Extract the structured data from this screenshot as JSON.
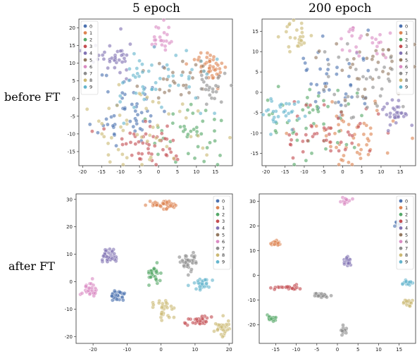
{
  "columns": [
    "5 epoch",
    "200 epoch"
  ],
  "rows": [
    "before FT",
    "after FT"
  ],
  "palette": [
    "#4c72b0",
    "#dd8452",
    "#55a868",
    "#c44e52",
    "#8172b3",
    "#937860",
    "#da8bc3",
    "#8c8c8c",
    "#ccb974",
    "#64b5cd"
  ],
  "chart_data": [
    {
      "type": "scatter",
      "panel": "5 epoch / before FT",
      "legend": [
        "0",
        "1",
        "2",
        "3",
        "4",
        "5",
        "6",
        "7",
        "8",
        "9"
      ],
      "legend_position": "top-left",
      "xlim": [
        -21,
        19.5
      ],
      "ylim": [
        -19,
        22.5
      ],
      "xticks": [
        -20,
        -15,
        -10,
        -5,
        0,
        5,
        10,
        15
      ],
      "yticks": [
        -15,
        -10,
        -5,
        0,
        5,
        10,
        15,
        20
      ],
      "clusters": [
        {
          "label": "0",
          "cx": -8,
          "cy": -3,
          "sx": 4,
          "sy": 6,
          "n": 50,
          "seed": 11
        },
        {
          "label": "1",
          "cx": 14,
          "cy": 9,
          "sx": 2.5,
          "sy": 2,
          "n": 45,
          "seed": 12
        },
        {
          "label": "2",
          "cx": 8,
          "cy": -10,
          "sx": 5,
          "sy": 4,
          "n": 40,
          "seed": 13
        },
        {
          "label": "3",
          "cx": 0,
          "cy": -13,
          "sx": 6,
          "sy": 3,
          "n": 45,
          "seed": 14
        },
        {
          "label": "4",
          "cx": -11,
          "cy": 12,
          "sx": 3,
          "sy": 3,
          "n": 35,
          "seed": 15
        },
        {
          "label": "5",
          "cx": 5,
          "cy": 5,
          "sx": 5,
          "sy": 3,
          "n": 25,
          "seed": 16
        },
        {
          "label": "6",
          "cx": 1,
          "cy": 17,
          "sx": 1.5,
          "sy": 2,
          "n": 22,
          "seed": 17
        },
        {
          "label": "7",
          "cx": 13,
          "cy": 2,
          "sx": 2.5,
          "sy": 3,
          "n": 25,
          "seed": 18
        },
        {
          "label": "8",
          "cx": -3,
          "cy": -8,
          "sx": 8,
          "sy": 6,
          "n": 50,
          "seed": 19
        },
        {
          "label": "9",
          "cx": 0,
          "cy": 5,
          "sx": 7,
          "sy": 5,
          "n": 50,
          "seed": 20
        }
      ]
    },
    {
      "type": "scatter",
      "panel": "200 epoch / before FT",
      "legend": [
        "0",
        "1",
        "2",
        "3",
        "4",
        "5",
        "6",
        "7",
        "8",
        "9"
      ],
      "legend_position": "top-right",
      "xlim": [
        -21,
        19
      ],
      "ylim": [
        -18,
        18
      ],
      "xticks": [
        -20,
        -15,
        -10,
        -5,
        0,
        5,
        10,
        15
      ],
      "yticks": [
        -15,
        -10,
        -5,
        0,
        5,
        10,
        15
      ],
      "clusters": [
        {
          "label": "0",
          "cx": -3,
          "cy": 3,
          "sx": 6,
          "sy": 5,
          "n": 40,
          "seed": 31
        },
        {
          "label": "1",
          "cx": 2,
          "cy": -10,
          "sx": 6,
          "sy": 4,
          "n": 50,
          "seed": 32
        },
        {
          "label": "2",
          "cx": -8,
          "cy": -8,
          "sx": 6,
          "sy": 5,
          "n": 45,
          "seed": 33
        },
        {
          "label": "3",
          "cx": -5,
          "cy": -10,
          "sx": 7,
          "sy": 4,
          "n": 45,
          "seed": 34
        },
        {
          "label": "4",
          "cx": 14,
          "cy": -5,
          "sx": 2,
          "sy": 2,
          "n": 30,
          "seed": 35
        },
        {
          "label": "5",
          "cx": 8,
          "cy": 7,
          "sx": 6,
          "sy": 4,
          "n": 35,
          "seed": 36
        },
        {
          "label": "6",
          "cx": 6,
          "cy": 12,
          "sx": 3,
          "sy": 2,
          "n": 25,
          "seed": 37
        },
        {
          "label": "7",
          "cx": 5,
          "cy": 3,
          "sx": 6,
          "sy": 5,
          "n": 35,
          "seed": 38
        },
        {
          "label": "8",
          "cx": -12,
          "cy": 14,
          "sx": 2,
          "sy": 2,
          "n": 25,
          "seed": 39
        },
        {
          "label": "9",
          "cx": -16,
          "cy": -5,
          "sx": 2.5,
          "sy": 2,
          "n": 30,
          "seed": 40
        }
      ]
    },
    {
      "type": "scatter",
      "panel": "5 epoch / after FT",
      "legend": [
        "0",
        "1",
        "2",
        "3",
        "4",
        "5",
        "6",
        "7",
        "8",
        "9"
      ],
      "legend_position": "top-right",
      "xlim": [
        -25,
        21
      ],
      "ylim": [
        -22.5,
        32
      ],
      "xticks": [
        -20,
        -10,
        0,
        10,
        20
      ],
      "yticks": [
        -20,
        -10,
        0,
        10,
        20,
        30
      ],
      "clusters": [
        {
          "label": "0",
          "cx": -13,
          "cy": -5,
          "sx": 1.2,
          "sy": 1.2,
          "n": 30,
          "seed": 51
        },
        {
          "label": "1",
          "cx": 0.5,
          "cy": 28,
          "sx": 2,
          "sy": 0.8,
          "n": 40,
          "seed": 52
        },
        {
          "label": "2",
          "cx": -2,
          "cy": 3,
          "sx": 1.2,
          "sy": 1.8,
          "n": 30,
          "seed": 53
        },
        {
          "label": "3",
          "cx": 11,
          "cy": -14,
          "sx": 1.8,
          "sy": 1,
          "n": 30,
          "seed": 54
        },
        {
          "label": "4",
          "cx": -15,
          "cy": 9,
          "sx": 1.5,
          "sy": 1.2,
          "n": 35,
          "seed": 55
        },
        {
          "label": "6",
          "cx": -21,
          "cy": -3,
          "sx": 1.2,
          "sy": 1.5,
          "n": 30,
          "seed": 56
        },
        {
          "label": "7",
          "cx": 8,
          "cy": 7,
          "sx": 1.5,
          "sy": 1.5,
          "n": 35,
          "seed": 57
        },
        {
          "label": "8",
          "cx": 0,
          "cy": -10,
          "sx": 1.5,
          "sy": 1.5,
          "n": 30,
          "seed": 58
        },
        {
          "label": "8",
          "cx": 18,
          "cy": -17,
          "sx": 1.2,
          "sy": 1.2,
          "n": 30,
          "seed": 59
        },
        {
          "label": "9",
          "cx": 12,
          "cy": -1,
          "sx": 1.2,
          "sy": 1.2,
          "n": 30,
          "seed": 60
        }
      ]
    },
    {
      "type": "scatter",
      "panel": "200 epoch / after FT",
      "legend": [
        "0",
        "1",
        "2",
        "3",
        "4",
        "5",
        "6",
        "7",
        "8",
        "9"
      ],
      "legend_position": "top-right",
      "xlim": [
        -19,
        19
      ],
      "ylim": [
        -27.5,
        33
      ],
      "xticks": [
        -15,
        -10,
        -5,
        0,
        5,
        10,
        15
      ],
      "yticks": [
        -20,
        -10,
        0,
        10,
        20,
        30
      ],
      "clusters": [
        {
          "label": "0",
          "cx": 15,
          "cy": 21,
          "sx": 0.5,
          "sy": 0.5,
          "n": 20,
          "seed": 71
        },
        {
          "label": "1",
          "cx": -15,
          "cy": 13,
          "sx": 0.7,
          "sy": 0.5,
          "n": 25,
          "seed": 72
        },
        {
          "label": "2",
          "cx": -16,
          "cy": -17,
          "sx": 0.6,
          "sy": 0.6,
          "n": 20,
          "seed": 73
        },
        {
          "label": "3",
          "cx": -12,
          "cy": -5,
          "sx": 1.8,
          "sy": 0.4,
          "n": 25,
          "seed": 74
        },
        {
          "label": "4",
          "cx": 2.5,
          "cy": 6,
          "sx": 0.5,
          "sy": 1,
          "n": 20,
          "seed": 75
        },
        {
          "label": "6",
          "cx": 2,
          "cy": 30,
          "sx": 0.5,
          "sy": 0.7,
          "n": 15,
          "seed": 76
        },
        {
          "label": "7",
          "cx": -4,
          "cy": -8,
          "sx": 1.2,
          "sy": 0.5,
          "n": 25,
          "seed": 77
        },
        {
          "label": "7",
          "cx": 1.5,
          "cy": -22.5,
          "sx": 0.4,
          "sy": 1,
          "n": 15,
          "seed": 78
        },
        {
          "label": "8",
          "cx": 17,
          "cy": -11,
          "sx": 0.6,
          "sy": 0.7,
          "n": 18,
          "seed": 79
        },
        {
          "label": "9",
          "cx": 17,
          "cy": -3,
          "sx": 0.7,
          "sy": 0.4,
          "n": 18,
          "seed": 80
        }
      ]
    }
  ]
}
